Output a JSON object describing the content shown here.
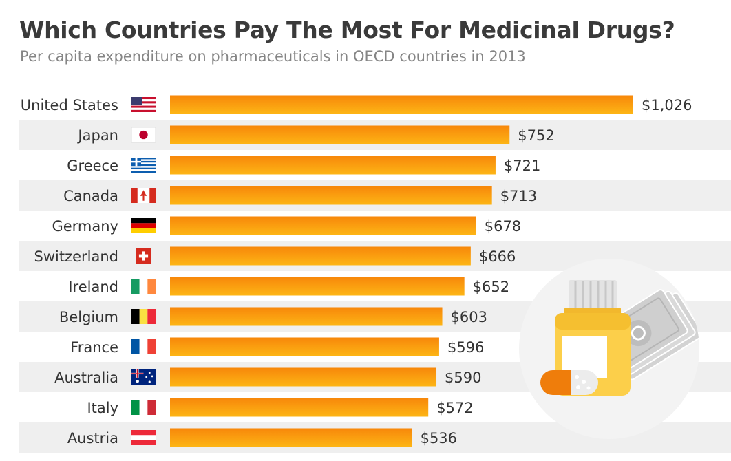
{
  "colors": {
    "bar_top": "#f7870a",
    "bar_bottom": "#fdb515",
    "row_stripe": "#efefef",
    "title": "#3a3a3a",
    "subtitle": "#858585"
  },
  "chart_data": {
    "type": "bar",
    "orientation": "horizontal",
    "title": "Which Countries Pay The Most For Medicinal Drugs?",
    "subtitle": "Per capita expenditure on pharmaceuticals in OECD countries in 2013",
    "xlabel": "",
    "ylabel": "",
    "xlim": [
      0,
      1026
    ],
    "grid": false,
    "categories": [
      "United States",
      "Japan",
      "Greece",
      "Canada",
      "Germany",
      "Switzerland",
      "Ireland",
      "Belgium",
      "France",
      "Australia",
      "Italy",
      "Austria"
    ],
    "flags": [
      "us-flag-icon",
      "japan-flag-icon",
      "greece-flag-icon",
      "canada-flag-icon",
      "germany-flag-icon",
      "switzerland-flag-icon",
      "ireland-flag-icon",
      "belgium-flag-icon",
      "france-flag-icon",
      "australia-flag-icon",
      "italy-flag-icon",
      "austria-flag-icon"
    ],
    "values": [
      1026,
      752,
      721,
      713,
      678,
      666,
      652,
      603,
      596,
      590,
      572,
      536
    ],
    "value_labels": [
      "$1,026",
      "$752",
      "$721",
      "$713",
      "$678",
      "$666",
      "$652",
      "$603",
      "$596",
      "$590",
      "$572",
      "$536"
    ]
  },
  "illustration": {
    "icons": [
      "medicine-bottle-icon",
      "capsule-icon",
      "money-bills-icon"
    ]
  }
}
